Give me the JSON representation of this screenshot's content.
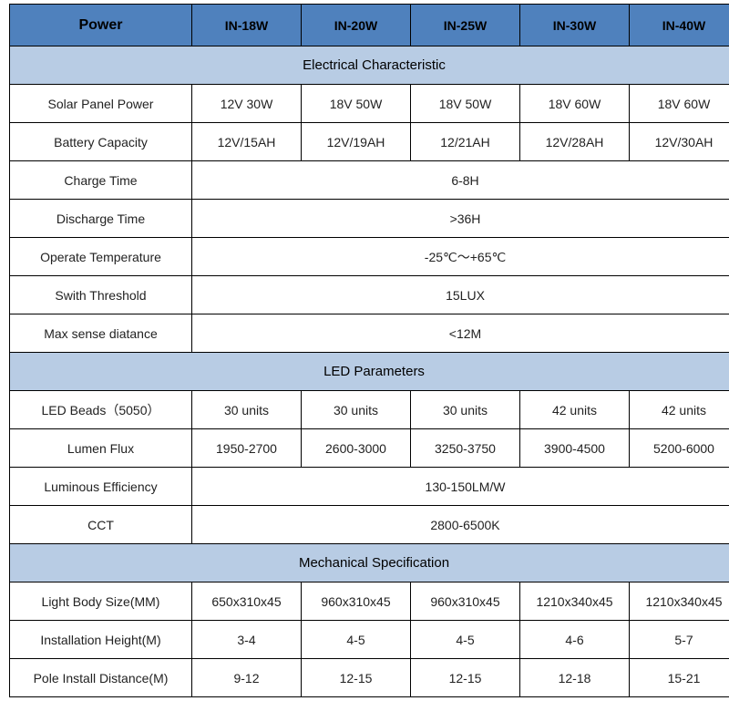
{
  "colors": {
    "header_bg": "#4f81bd",
    "section_bg": "#b8cce4",
    "border": "#000000",
    "text": "#222222"
  },
  "header": {
    "power": "Power",
    "cols": [
      "IN-18W",
      "IN-20W",
      "IN-25W",
      "IN-30W",
      "IN-40W"
    ]
  },
  "sections": {
    "electrical": "Electrical Characteristic",
    "led": "LED Parameters",
    "mech": "Mechanical Specification"
  },
  "rows": {
    "solar_panel": {
      "label": "Solar Panel Power",
      "vals": [
        "12V 30W",
        "18V 50W",
        "18V 50W",
        "18V 60W",
        "18V 60W"
      ]
    },
    "battery": {
      "label": "Battery Capacity",
      "vals": [
        "12V/15AH",
        "12V/19AH",
        "12/21AH",
        "12V/28AH",
        "12V/30AH"
      ]
    },
    "charge": {
      "label": "Charge Time",
      "merged": "6-8H"
    },
    "discharge": {
      "label": "Discharge Time",
      "merged": ">36H"
    },
    "op_temp": {
      "label": "Operate Temperature",
      "merged": "-25℃～+65℃"
    },
    "switch": {
      "label": "Swith Threshold",
      "merged": "15LUX"
    },
    "sense": {
      "label": "Max sense diatance",
      "merged": "<12M"
    },
    "beads": {
      "label": "LED Beads（5050）",
      "vals": [
        "30  units",
        "30  units",
        "30 units",
        "42 units",
        "42 units"
      ]
    },
    "lumen": {
      "label": "Lumen Flux",
      "vals": [
        "1950-2700",
        "2600-3000",
        "3250-3750",
        "3900-4500",
        "5200-6000"
      ]
    },
    "eff": {
      "label": "Luminous Efficiency",
      "merged": "130-150LM/W"
    },
    "cct": {
      "label": "CCT",
      "merged": "2800-6500K"
    },
    "body": {
      "label": "Light Body Size(MM)",
      "vals": [
        "650x310x45",
        "960x310x45",
        "960x310x45",
        "1210x340x45",
        "1210x340x45"
      ]
    },
    "height": {
      "label": "Installation Height(M)",
      "vals": [
        "3-4",
        "4-5",
        "4-5",
        "4-6",
        "5-7"
      ]
    },
    "pole": {
      "label": "Pole Install Distance(M)",
      "vals": [
        "9-12",
        "12-15",
        "12-15",
        "12-18",
        "15-21"
      ]
    }
  }
}
